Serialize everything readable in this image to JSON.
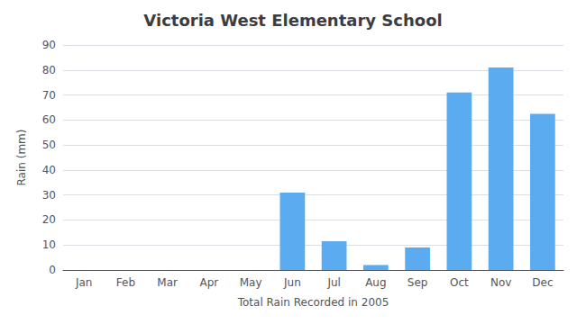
{
  "chart_data": {
    "type": "bar",
    "title": "Victoria West Elementary School",
    "xlabel": "Total Rain Recorded in 2005",
    "ylabel": "Rain (mm)",
    "categories": [
      "Jan",
      "Feb",
      "Mar",
      "Apr",
      "May",
      "Jun",
      "Jul",
      "Aug",
      "Sep",
      "Oct",
      "Nov",
      "Dec"
    ],
    "values": [
      0,
      0,
      0,
      0,
      0,
      31,
      11.5,
      2,
      9,
      71,
      81,
      62.5
    ],
    "color": "#5aabf0",
    "ylim": [
      0,
      90
    ],
    "yticks": [
      0,
      10,
      20,
      30,
      40,
      50,
      60,
      70,
      80,
      90
    ],
    "grid": true
  }
}
